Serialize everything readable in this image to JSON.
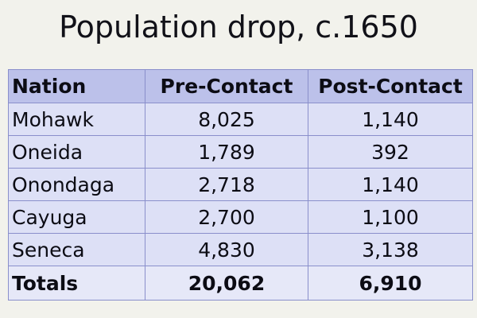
{
  "title": "Population drop, c.1650",
  "chart_data": {
    "type": "table",
    "title": "Population drop, c.1650",
    "columns": [
      "Nation",
      "Pre-Contact",
      "Post-Contact"
    ],
    "rows": [
      {
        "nation": "Mohawk",
        "pre": "8,025",
        "post": "1,140"
      },
      {
        "nation": "Oneida",
        "pre": "1,789",
        "post": "392"
      },
      {
        "nation": "Onondaga",
        "pre": "2,718",
        "post": "1,140"
      },
      {
        "nation": "Cayuga",
        "pre": "2,700",
        "post": "1,100"
      },
      {
        "nation": "Seneca",
        "pre": "4,830",
        "post": "3,138"
      }
    ],
    "totals": {
      "label": "Totals",
      "pre": "20,062",
      "post": "6,910"
    }
  },
  "colors": {
    "background": "#f2f2ec",
    "header_fill": "#bcc1ea",
    "row_fill": "#dde0f6",
    "border": "#8a8fcb"
  }
}
